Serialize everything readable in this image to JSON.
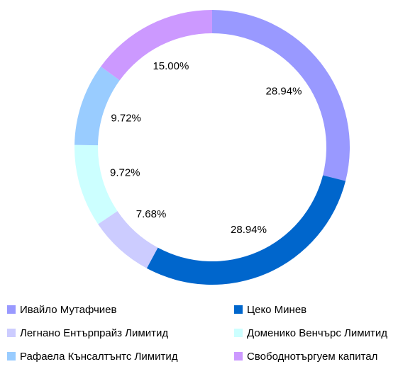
{
  "chart_data": {
    "type": "donut",
    "categories": [
      "Ивайло Мутафчиев",
      "Цеко Минев",
      "Легнано Ентърпрайз Лимитид",
      "Доменико Венчърс Лимитид",
      "Рафаела Кънсалтънтс Лимитид",
      "Свободнотъргуем капитал"
    ],
    "values": [
      28.94,
      28.94,
      7.68,
      9.72,
      9.72,
      15.0
    ],
    "value_labels": [
      "28.94%",
      "28.94%",
      "7.68%",
      "9.72%",
      "9.72%",
      "15.00%"
    ],
    "colors": [
      "#9999ff",
      "#0066cc",
      "#ccccff",
      "#ccffff",
      "#99ccff",
      "#cc99ff"
    ],
    "legend": "bottom"
  }
}
